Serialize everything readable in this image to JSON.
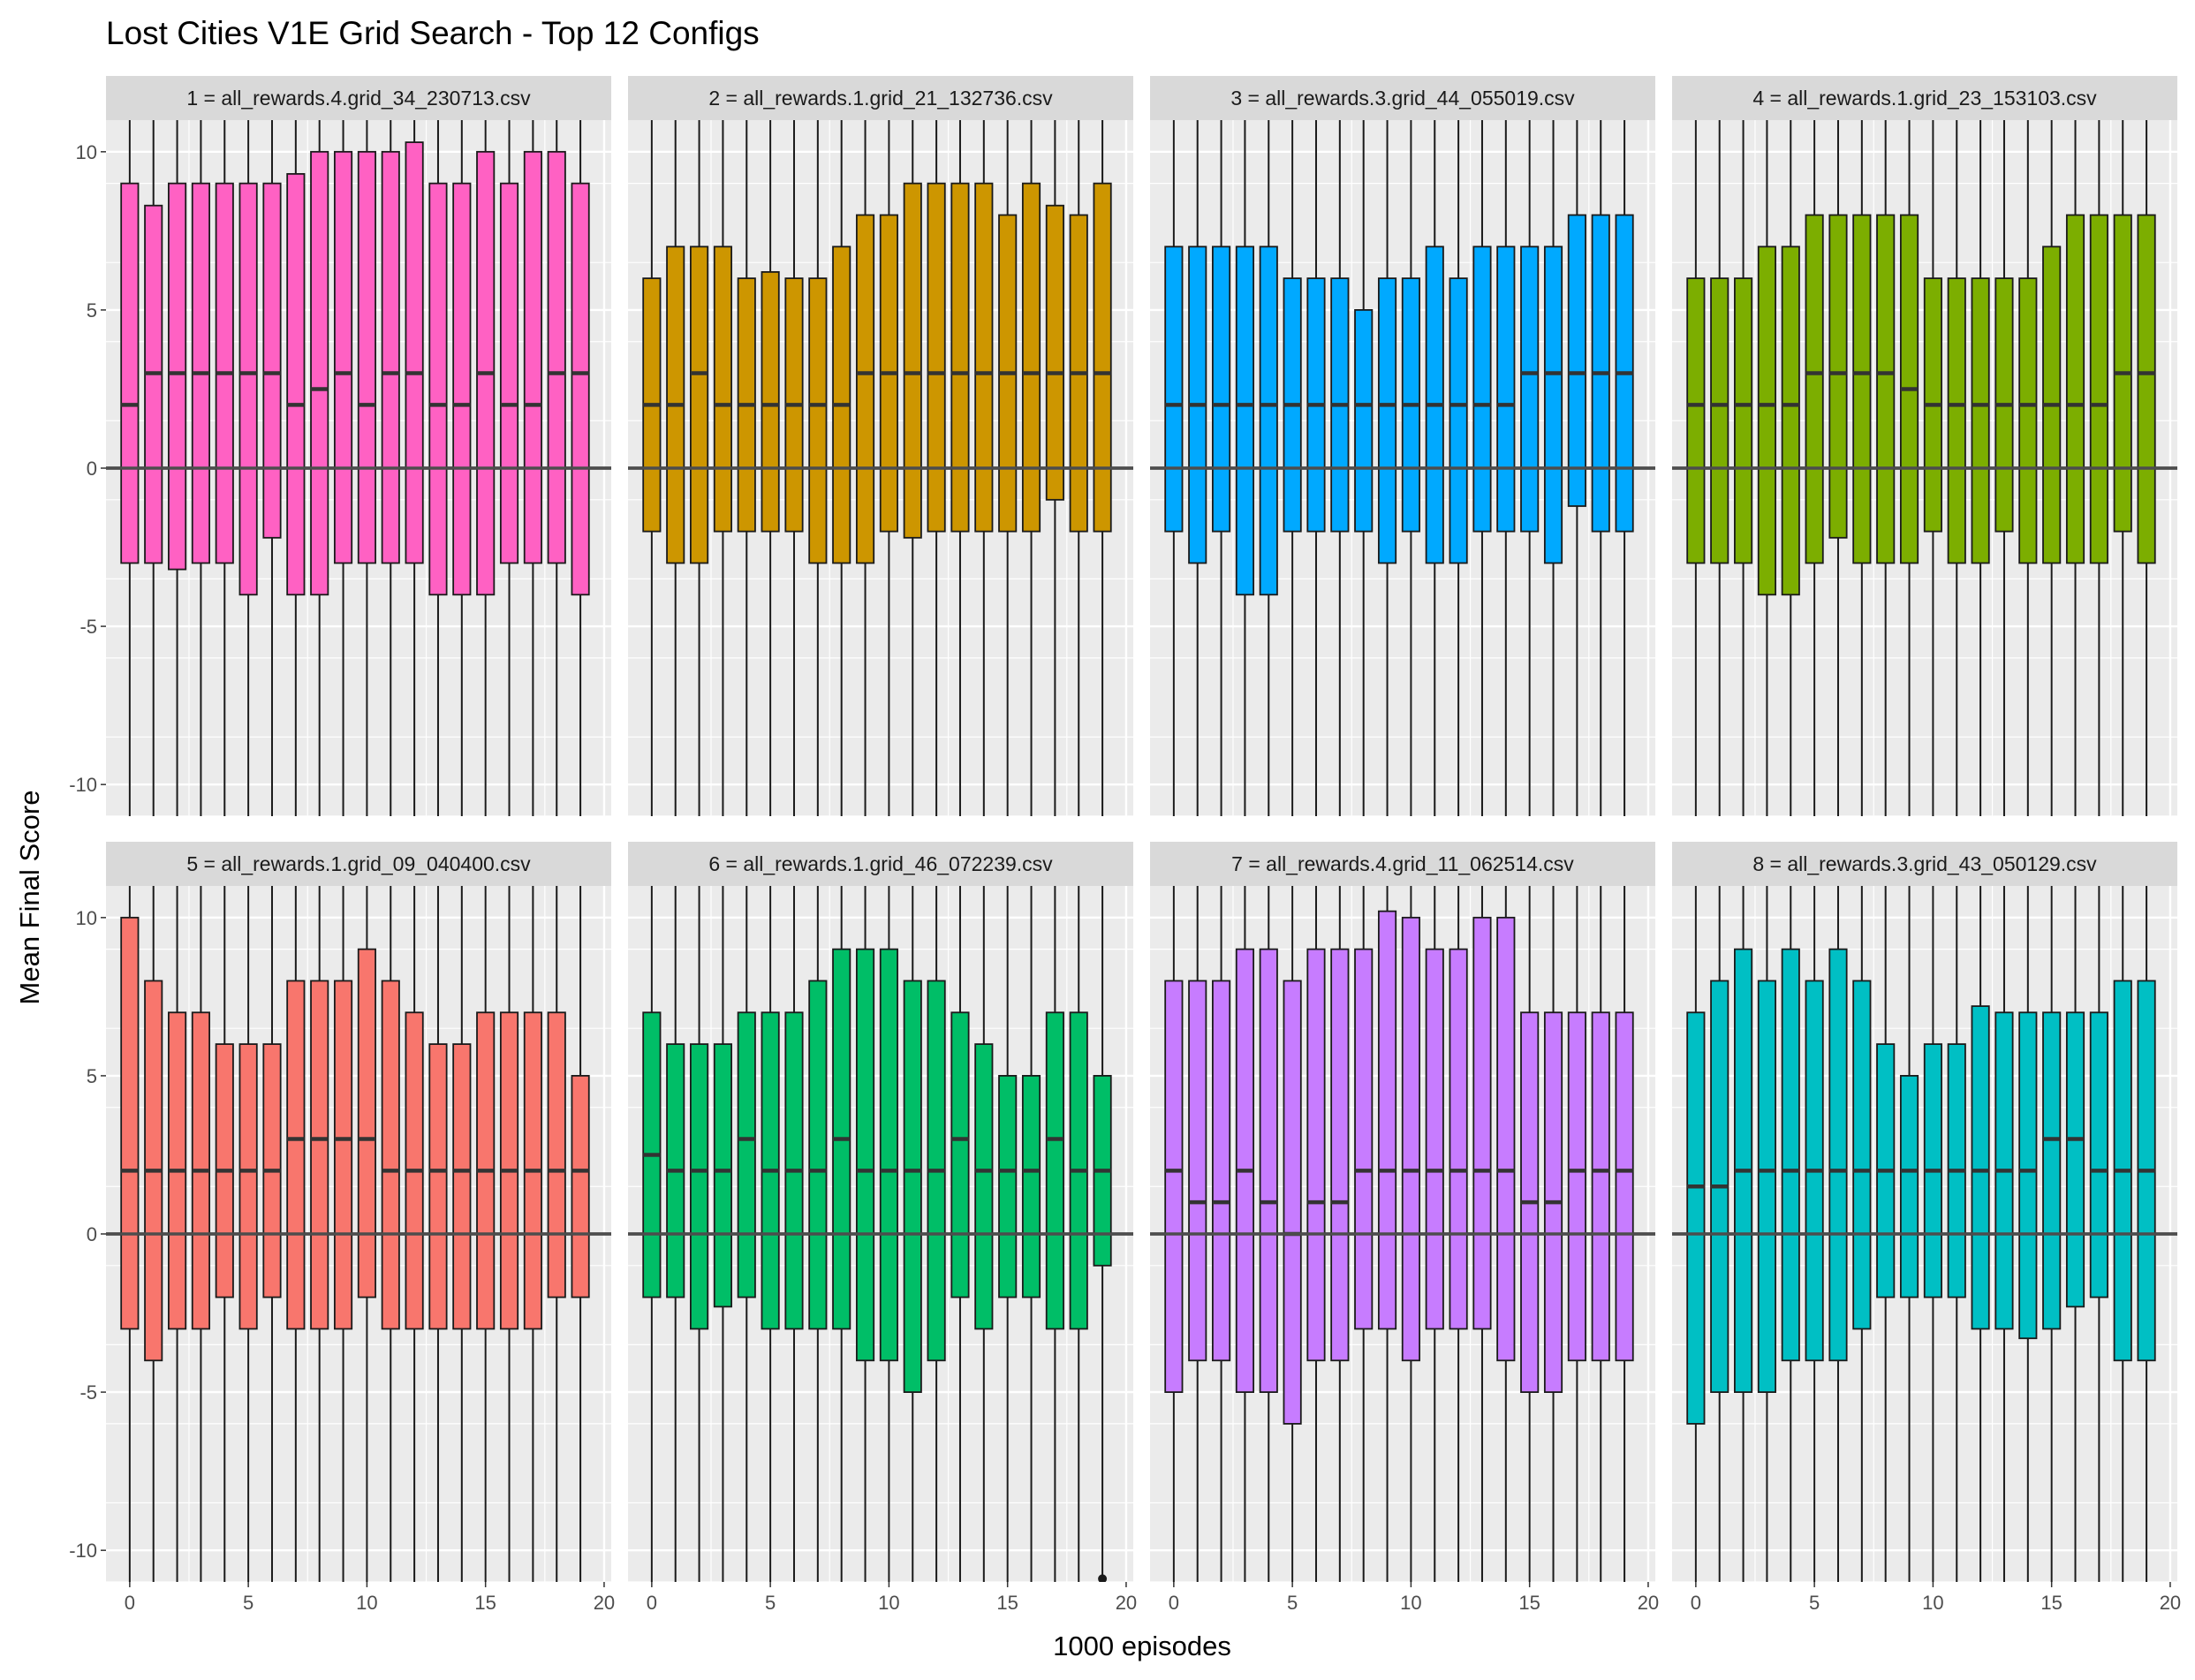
{
  "chart_data": {
    "type": "boxplot",
    "title": "Lost Cities V1E Grid Search - Top 12 Configs",
    "xlabel": "1000 episodes",
    "ylabel": "Mean Final Score",
    "xlim": [
      -1,
      20.3
    ],
    "ylim": [
      -11,
      11
    ],
    "x_ticks": [
      0,
      5,
      10,
      15,
      20
    ],
    "y_ticks": [
      -10,
      -5,
      0,
      5,
      10
    ],
    "reference_line_y": 0,
    "grid": true,
    "panels": [
      {
        "label": "1 = all_rewards.4.grid_34_230713.csv",
        "color": "#FF61C3",
        "x": [
          0,
          1,
          2,
          3,
          4,
          5,
          6,
          7,
          8,
          9,
          10,
          11,
          12,
          13,
          14,
          15,
          16,
          17,
          18,
          19
        ],
        "q1": [
          -3,
          -3,
          -3.2,
          -3,
          -3,
          -4,
          -2.2,
          -4,
          -4,
          -3,
          -3,
          -3,
          -3,
          -4,
          -4,
          -4,
          -3,
          -3,
          -3,
          -4
        ],
        "median": [
          2,
          3,
          3,
          3,
          3,
          3,
          3,
          2,
          2.5,
          3,
          2,
          3,
          3,
          2,
          2,
          3,
          2,
          2,
          3,
          3
        ],
        "q3": [
          9,
          8.3,
          9,
          9,
          9,
          9,
          9,
          9.3,
          10,
          10,
          10,
          10,
          10.3,
          9,
          9,
          10,
          9,
          10,
          10,
          9
        ],
        "lower_whisker": -11,
        "upper_whisker": 11
      },
      {
        "label": "2 = all_rewards.1.grid_21_132736.csv",
        "color": "#CD9600",
        "x": [
          0,
          1,
          2,
          3,
          4,
          5,
          6,
          7,
          8,
          9,
          10,
          11,
          12,
          13,
          14,
          15,
          16,
          17,
          18,
          19
        ],
        "q1": [
          -2,
          -3,
          -3,
          -2,
          -2,
          -2,
          -2,
          -3,
          -3,
          -3,
          -2,
          -2.2,
          -2,
          -2,
          -2,
          -2,
          -2,
          -1,
          -2,
          -2
        ],
        "median": [
          2,
          2,
          3,
          2,
          2,
          2,
          2,
          2,
          2,
          3,
          3,
          3,
          3,
          3,
          3,
          3,
          3,
          3,
          3,
          3
        ],
        "q3": [
          6,
          7,
          7,
          7,
          6,
          6.2,
          6,
          6,
          7,
          8,
          8,
          9,
          9,
          9,
          9,
          8,
          9,
          8.3,
          8,
          9
        ],
        "lower_whisker": -11,
        "upper_whisker": 11
      },
      {
        "label": "3 = all_rewards.3.grid_44_055019.csv",
        "color": "#00A9FF",
        "x": [
          0,
          1,
          2,
          3,
          4,
          5,
          6,
          7,
          8,
          9,
          10,
          11,
          12,
          13,
          14,
          15,
          16,
          17,
          18,
          19
        ],
        "q1": [
          -2,
          -3,
          -2,
          -4,
          -4,
          -2,
          -2,
          -2,
          -2,
          -3,
          -2,
          -3,
          -3,
          -2,
          -2,
          -2,
          -3,
          -1.2,
          -2,
          -2
        ],
        "median": [
          2,
          2,
          2,
          2,
          2,
          2,
          2,
          2,
          2,
          2,
          2,
          2,
          2,
          2,
          2,
          3,
          3,
          3,
          3,
          3
        ],
        "q3": [
          7,
          7,
          7,
          7,
          7,
          6,
          6,
          6,
          5,
          6,
          6,
          7,
          6,
          7,
          7,
          7,
          7,
          8,
          8,
          8
        ],
        "lower_whisker": -11,
        "upper_whisker": 11
      },
      {
        "label": "4 = all_rewards.1.grid_23_153103.csv",
        "color": "#7CAE00",
        "x": [
          0,
          1,
          2,
          3,
          4,
          5,
          6,
          7,
          8,
          9,
          10,
          11,
          12,
          13,
          14,
          15,
          16,
          17,
          18,
          19
        ],
        "q1": [
          -3,
          -3,
          -3,
          -4,
          -4,
          -3,
          -2.2,
          -3,
          -3,
          -3,
          -2,
          -3,
          -3,
          -2,
          -3,
          -3,
          -3,
          -3,
          -2,
          -3
        ],
        "median": [
          2,
          2,
          2,
          2,
          2,
          3,
          3,
          3,
          3,
          2.5,
          2,
          2,
          2,
          2,
          2,
          2,
          2,
          2,
          3,
          3
        ],
        "q3": [
          6,
          6,
          6,
          7,
          7,
          8,
          8,
          8,
          8,
          8,
          6,
          6,
          6,
          6,
          6,
          7,
          8,
          8,
          8,
          8
        ],
        "lower_whisker": -11,
        "upper_whisker": 11
      },
      {
        "label": "5 = all_rewards.1.grid_09_040400.csv",
        "color": "#F8766D",
        "x": [
          0,
          1,
          2,
          3,
          4,
          5,
          6,
          7,
          8,
          9,
          10,
          11,
          12,
          13,
          14,
          15,
          16,
          17,
          18,
          19
        ],
        "q1": [
          -3,
          -4,
          -3,
          -3,
          -2,
          -3,
          -2,
          -3,
          -3,
          -3,
          -2,
          -3,
          -3,
          -3,
          -3,
          -3,
          -3,
          -3,
          -2,
          -2
        ],
        "median": [
          2,
          2,
          2,
          2,
          2,
          2,
          2,
          3,
          3,
          3,
          3,
          2,
          2,
          2,
          2,
          2,
          2,
          2,
          2,
          2
        ],
        "q3": [
          10,
          8,
          7,
          7,
          6,
          6,
          6,
          8,
          8,
          8,
          9,
          8,
          7,
          6,
          6,
          7,
          7,
          7,
          7,
          5
        ],
        "lower_whisker": -11,
        "upper_whisker": 11
      },
      {
        "label": "6 = all_rewards.1.grid_46_072239.csv",
        "color": "#00BE67",
        "x": [
          0,
          1,
          2,
          3,
          4,
          5,
          6,
          7,
          8,
          9,
          10,
          11,
          12,
          13,
          14,
          15,
          16,
          17,
          18,
          19
        ],
        "q1": [
          -2,
          -2,
          -3,
          -2.3,
          -2,
          -3,
          -3,
          -3,
          -3,
          -4,
          -4,
          -5,
          -4,
          -2,
          -3,
          -2,
          -2,
          -3,
          -3,
          -1
        ],
        "median": [
          2.5,
          2,
          2,
          2,
          3,
          2,
          2,
          2,
          3,
          2,
          2,
          2,
          2,
          3,
          2,
          2,
          2,
          3,
          2,
          2
        ],
        "q3": [
          7,
          6,
          6,
          6,
          7,
          7,
          7,
          8,
          9,
          9,
          9,
          8,
          8,
          7,
          6,
          5,
          5,
          7,
          7,
          5
        ],
        "lower_whisker": -11,
        "upper_whisker": 11,
        "outliers": [
          {
            "x": 19,
            "y": -10.9
          }
        ]
      },
      {
        "label": "7 = all_rewards.4.grid_11_062514.csv",
        "color": "#C77CFF",
        "x": [
          0,
          1,
          2,
          3,
          4,
          5,
          6,
          7,
          8,
          9,
          10,
          11,
          12,
          13,
          14,
          15,
          16,
          17,
          18,
          19
        ],
        "q1": [
          -5,
          -4,
          -4,
          -5,
          -5,
          -6,
          -4,
          -4,
          -3,
          -3,
          -4,
          -3,
          -3,
          -3,
          -4,
          -5,
          -5,
          -4,
          -4,
          -4
        ],
        "median": [
          2,
          1,
          1,
          2,
          1,
          0,
          1,
          1,
          2,
          2,
          2,
          2,
          2,
          2,
          2,
          1,
          1,
          2,
          2,
          2
        ],
        "q3": [
          8,
          8,
          8,
          9,
          9,
          8,
          9,
          9,
          9,
          10.2,
          10,
          9,
          9,
          10,
          10,
          7,
          7,
          7,
          7,
          7
        ],
        "lower_whisker": -11,
        "upper_whisker": 11
      },
      {
        "label": "8 = all_rewards.3.grid_43_050129.csv",
        "color": "#00BFC4",
        "x": [
          0,
          1,
          2,
          3,
          4,
          5,
          6,
          7,
          8,
          9,
          10,
          11,
          12,
          13,
          14,
          15,
          16,
          17,
          18,
          19
        ],
        "q1": [
          -6,
          -5,
          -5,
          -5,
          -4,
          -4,
          -4,
          -3,
          -2,
          -2,
          -2,
          -2,
          -3,
          -3,
          -3.3,
          -3,
          -2.3,
          -2,
          -4,
          -4
        ],
        "median": [
          1.5,
          1.5,
          2,
          2,
          2,
          2,
          2,
          2,
          2,
          2,
          2,
          2,
          2,
          2,
          2,
          3,
          3,
          2,
          2,
          2
        ],
        "q3": [
          7,
          8,
          9,
          8,
          9,
          8,
          9,
          8,
          6,
          5,
          6,
          6,
          7.2,
          7,
          7,
          7,
          7,
          7,
          8,
          8
        ],
        "lower_whisker": -11,
        "upper_whisker": 11
      }
    ]
  }
}
